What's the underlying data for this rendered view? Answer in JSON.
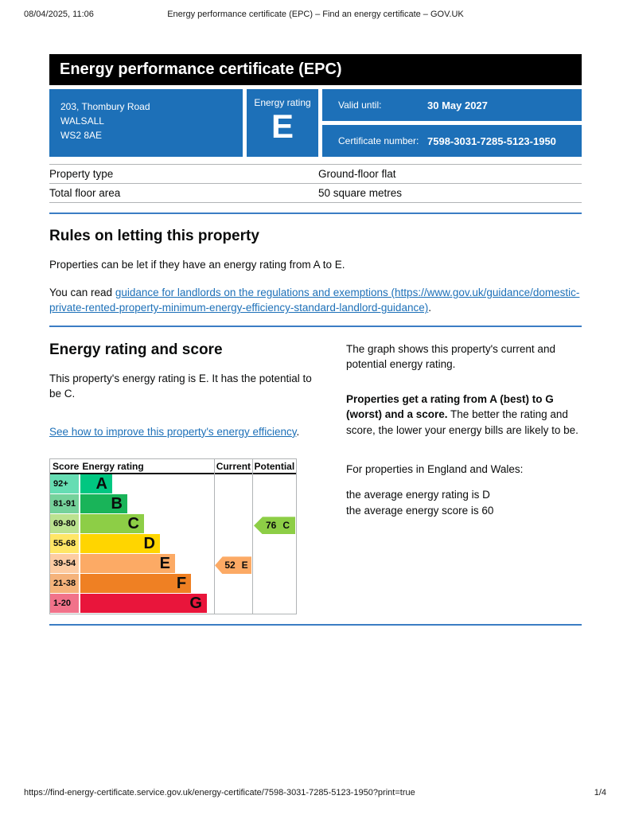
{
  "page": {
    "print_date": "08/04/2025, 11:06",
    "print_title": "Energy performance certificate (EPC) – Find an energy certificate – GOV.UK",
    "footer_url": "https://find-energy-certificate.service.gov.uk/energy-certificate/7598-3031-7285-5123-1950?print=true",
    "page_number": "1/4"
  },
  "banner": {
    "title": "Energy performance certificate (EPC)"
  },
  "summary": {
    "address_lines": [
      "203, Thombury Road",
      "WALSALL",
      "WS2 8AE"
    ],
    "energy_rating_label": "Energy rating",
    "energy_rating": "E",
    "valid_until_label": "Valid until:",
    "valid_until": "30 May 2027",
    "certificate_number_label": "Certificate number:",
    "certificate_number": "7598-3031-7285-5123-1950"
  },
  "property_table": {
    "rows": [
      {
        "label": "Property type",
        "value": "Ground-floor flat"
      },
      {
        "label": "Total floor area",
        "value": "50 square metres"
      }
    ]
  },
  "rules": {
    "heading": "Rules on letting this property",
    "para1": "Properties can be let if they have an energy rating from A to E.",
    "para2_prefix": "You can read ",
    "para2_link": "guidance for landlords on the regulations and exemptions (https://www.gov.uk/guidance/domestic-private-rented-property-minimum-energy-efficiency-standard-landlord-guidance)",
    "para2_suffix": "."
  },
  "rating_section": {
    "heading": "Energy rating and score",
    "para1": "This property's energy rating is E. It has the potential to be C.",
    "improve_link": "See how to improve this property's energy efficiency",
    "improve_link_suffix": ".",
    "right_para1": "The graph shows this property's current and potential energy rating.",
    "right_para2_bold": "Properties get a rating from A (best) to G (worst) and a score.",
    "right_para2_rest": " The better the rating and score, the lower your energy bills are likely to be.",
    "right_para3": "For properties in England and Wales:",
    "avg_line1": "the average energy rating is D",
    "avg_line2": "the average energy score is 60"
  },
  "chart_data": {
    "type": "epc-band-chart",
    "headers": {
      "score": "Score",
      "rating": "Energy rating",
      "current": "Current",
      "potential": "Potential"
    },
    "bands": [
      {
        "letter": "A",
        "score_range": "92+",
        "width_pct": 23.5,
        "color": "#00c781",
        "tint": "#66ddb3"
      },
      {
        "letter": "B",
        "score_range": "81-91",
        "width_pct": 34.7,
        "color": "#19b459",
        "tint": "#75d29b"
      },
      {
        "letter": "C",
        "score_range": "69-80",
        "width_pct": 47.0,
        "color": "#8dce46",
        "tint": "#bbe290"
      },
      {
        "letter": "D",
        "score_range": "55-68",
        "width_pct": 58.8,
        "color": "#ffd500",
        "tint": "#ffe666"
      },
      {
        "letter": "E",
        "score_range": "39-54",
        "width_pct": 70.0,
        "color": "#fcaa65",
        "tint": "#fdcca3"
      },
      {
        "letter": "F",
        "score_range": "21-38",
        "width_pct": 81.8,
        "color": "#ef8023",
        "tint": "#f5b37b"
      },
      {
        "letter": "G",
        "score_range": "1-20",
        "width_pct": 93.5,
        "color": "#e9153b",
        "tint": "#f1728a"
      }
    ],
    "current": {
      "score": 52,
      "letter": "E",
      "band_index": 4,
      "color": "#fcaa65"
    },
    "potential": {
      "score": 76,
      "letter": "C",
      "band_index": 2,
      "color": "#8dce46"
    },
    "colors": {
      "govuk_blue": "#1d70b8",
      "rule_blue": "#3b7dc4",
      "border_grey": "#b1b4b6"
    }
  }
}
